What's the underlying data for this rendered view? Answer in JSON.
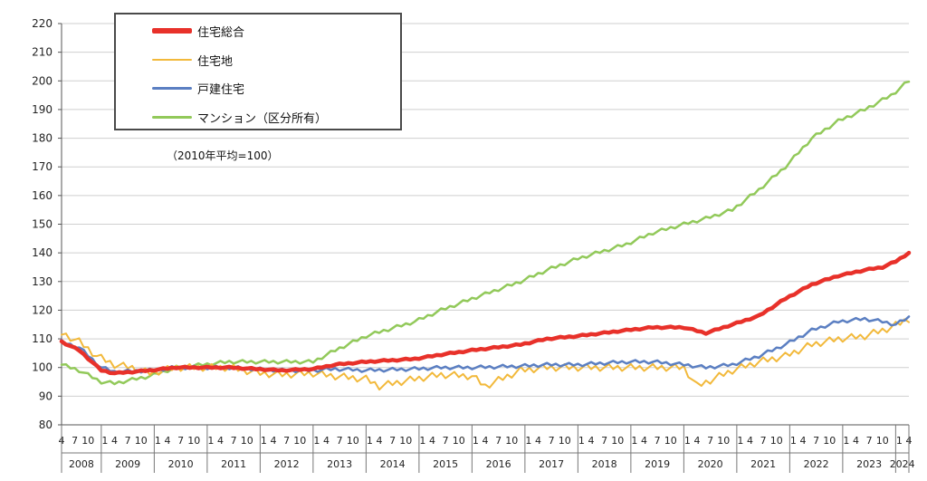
{
  "chart_data": {
    "type": "line",
    "note": "（2010年平均=100）",
    "ylim": [
      80,
      220
    ],
    "yticks": [
      80,
      90,
      100,
      110,
      120,
      130,
      140,
      150,
      160,
      170,
      180,
      190,
      200,
      210,
      220
    ],
    "month_ticks": [
      "4",
      "7",
      "10",
      "1"
    ],
    "years": [
      "2008",
      "2009",
      "2010",
      "2011",
      "2012",
      "2013",
      "2014",
      "2015",
      "2016",
      "2017",
      "2018",
      "2019",
      "2020",
      "2021",
      "2022",
      "2023",
      "2024"
    ],
    "x_start": "2008-04",
    "x_end": "2024-04",
    "series": [
      {
        "name": "住宅総合",
        "color": "#e8312a",
        "width": 4.5,
        "points": [
          [
            "2008-04",
            109
          ],
          [
            "2008-08",
            106
          ],
          [
            "2009-01",
            99
          ],
          [
            "2009-04",
            98
          ],
          [
            "2009-12",
            99
          ],
          [
            "2010-06",
            100
          ],
          [
            "2011-06",
            100
          ],
          [
            "2012-06",
            99
          ],
          [
            "2013-01",
            99.5
          ],
          [
            "2013-06",
            101
          ],
          [
            "2014-01",
            102
          ],
          [
            "2014-12",
            103
          ],
          [
            "2015-06",
            104.5
          ],
          [
            "2016-01",
            106
          ],
          [
            "2016-12",
            108
          ],
          [
            "2017-06",
            110
          ],
          [
            "2018-01",
            111
          ],
          [
            "2018-12",
            113
          ],
          [
            "2019-06",
            114
          ],
          [
            "2020-01",
            114
          ],
          [
            "2020-06",
            112
          ],
          [
            "2020-12",
            115
          ],
          [
            "2021-06",
            118
          ],
          [
            "2021-12",
            124
          ],
          [
            "2022-06",
            129
          ],
          [
            "2022-12",
            132
          ],
          [
            "2023-06",
            134
          ],
          [
            "2023-10",
            135
          ],
          [
            "2024-01",
            137
          ],
          [
            "2024-04",
            140
          ]
        ]
      },
      {
        "name": "住宅地",
        "color": "#f2b93b",
        "width": 2,
        "points": [
          [
            "2008-04",
            112
          ],
          [
            "2008-08",
            109
          ],
          [
            "2008-12",
            104
          ],
          [
            "2009-04",
            101
          ],
          [
            "2009-08",
            100
          ],
          [
            "2009-12",
            98
          ],
          [
            "2010-06",
            100
          ],
          [
            "2011-06",
            100
          ],
          [
            "2012-01",
            98
          ],
          [
            "2012-06",
            97.5
          ],
          [
            "2013-01",
            98
          ],
          [
            "2013-06",
            97
          ],
          [
            "2014-01",
            96
          ],
          [
            "2014-04",
            93.5
          ],
          [
            "2014-12",
            96
          ],
          [
            "2015-06",
            97.5
          ],
          [
            "2016-01",
            97
          ],
          [
            "2016-04",
            93.5
          ],
          [
            "2016-12",
            99
          ],
          [
            "2017-06",
            100
          ],
          [
            "2018-01",
            100
          ],
          [
            "2018-12",
            100
          ],
          [
            "2019-06",
            100
          ],
          [
            "2020-01",
            100
          ],
          [
            "2020-04",
            93.5
          ],
          [
            "2020-12",
            99
          ],
          [
            "2021-06",
            102
          ],
          [
            "2021-12",
            104
          ],
          [
            "2022-06",
            108
          ],
          [
            "2022-12",
            110
          ],
          [
            "2023-06",
            111
          ],
          [
            "2023-12",
            114
          ],
          [
            "2024-04",
            117
          ]
        ]
      },
      {
        "name": "戸建住宅",
        "color": "#5b7fc2",
        "width": 2.5,
        "points": [
          [
            "2008-04",
            109
          ],
          [
            "2008-08",
            107
          ],
          [
            "2009-01",
            100
          ],
          [
            "2009-04",
            98.5
          ],
          [
            "2009-12",
            99
          ],
          [
            "2010-06",
            100
          ],
          [
            "2011-06",
            100
          ],
          [
            "2012-06",
            99
          ],
          [
            "2013-01",
            99
          ],
          [
            "2013-06",
            99.5
          ],
          [
            "2014-01",
            99
          ],
          [
            "2014-12",
            99.5
          ],
          [
            "2015-06",
            100
          ],
          [
            "2016-01",
            100
          ],
          [
            "2016-12",
            100.5
          ],
          [
            "2017-06",
            101
          ],
          [
            "2018-01",
            101
          ],
          [
            "2018-12",
            102
          ],
          [
            "2019-06",
            102
          ],
          [
            "2020-01",
            101
          ],
          [
            "2020-06",
            100
          ],
          [
            "2020-12",
            101
          ],
          [
            "2021-06",
            104
          ],
          [
            "2021-12",
            108
          ],
          [
            "2022-06",
            113
          ],
          [
            "2022-12",
            116
          ],
          [
            "2023-06",
            117
          ],
          [
            "2023-10",
            116
          ],
          [
            "2024-01",
            115
          ],
          [
            "2024-04",
            117.5
          ]
        ]
      },
      {
        "name": "マンション（区分所有）",
        "color": "#92c95a",
        "width": 2.5,
        "points": [
          [
            "2008-04",
            101
          ],
          [
            "2008-08",
            99
          ],
          [
            "2009-01",
            95
          ],
          [
            "2009-04",
            94.5
          ],
          [
            "2009-12",
            97
          ],
          [
            "2010-06",
            100
          ],
          [
            "2011-06",
            102
          ],
          [
            "2012-06",
            102
          ],
          [
            "2013-01",
            102
          ],
          [
            "2013-06",
            106
          ],
          [
            "2014-01",
            111
          ],
          [
            "2014-12",
            116
          ],
          [
            "2015-06",
            120
          ],
          [
            "2016-01",
            124
          ],
          [
            "2016-12",
            130
          ],
          [
            "2017-06",
            134
          ],
          [
            "2018-01",
            138
          ],
          [
            "2018-12",
            143
          ],
          [
            "2019-06",
            147
          ],
          [
            "2020-01",
            150
          ],
          [
            "2020-06",
            152
          ],
          [
            "2020-12",
            155
          ],
          [
            "2021-06",
            162
          ],
          [
            "2021-12",
            170
          ],
          [
            "2022-06",
            180
          ],
          [
            "2022-12",
            186
          ],
          [
            "2023-06",
            190
          ],
          [
            "2023-12",
            195
          ],
          [
            "2024-04",
            200
          ]
        ]
      }
    ]
  }
}
